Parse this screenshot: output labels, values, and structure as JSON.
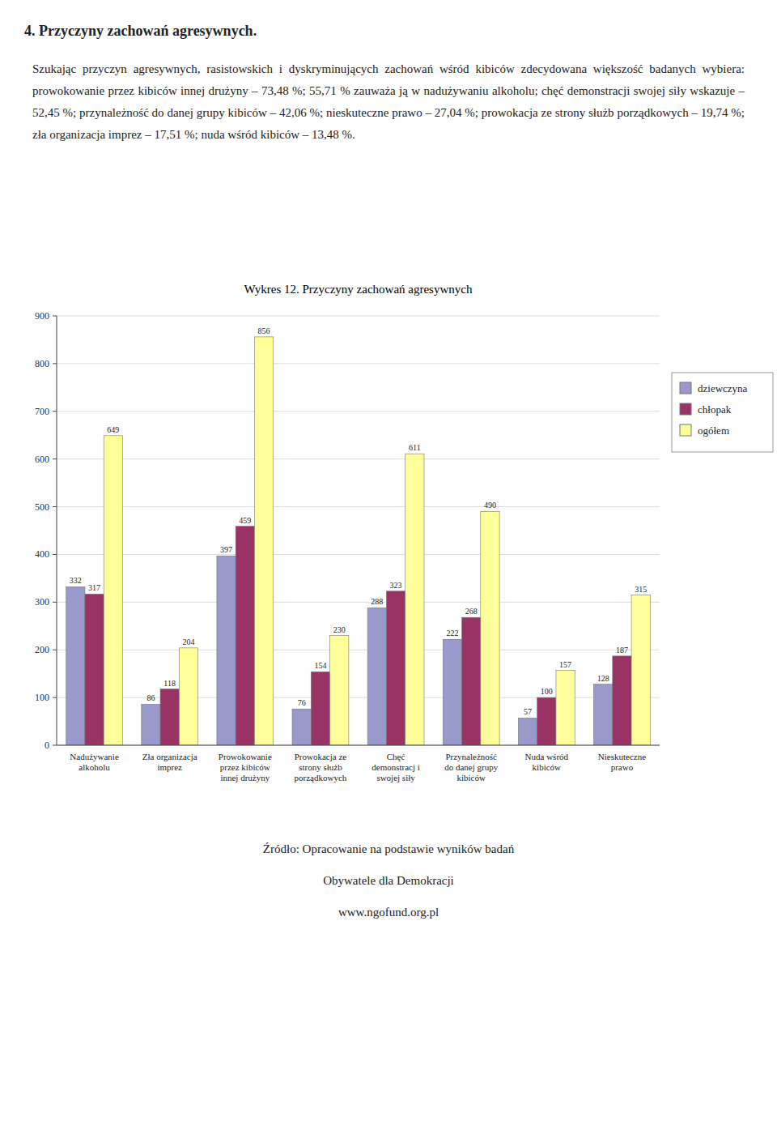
{
  "header": "4. Przyczyny zachowań agresywnych.",
  "paragraph": "Szukając przyczyn agresywnych, rasistowskich i dyskryminujących  zachowań wśród kibiców zdecydowana większość badanych wybiera: prowokowanie przez kibiców innej drużyny – 73,48 %; 55,71 % zauważa ją w nadużywaniu alkoholu; chęć demonstracji swojej siły wskazuje – 52,45 %; przynależność do danej grupy kibiców – 42,06 %; nieskuteczne prawo – 27,04 %; prowokacja ze strony służb porządkowych – 19,74 %; zła organizacja imprez – 17,51 %; nuda wśród kibiców – 13,48 %.",
  "footer": [
    "Źródło: Opracowanie na podstawie wyników badań",
    "Obywatele dla Demokracji",
    "www.ngofund.org.pl"
  ],
  "chart_data": {
    "type": "bar",
    "title": "Wykres 12. Przyczyny  zachowań agresywnych",
    "categories": [
      "Nadużywanie\nalkoholu",
      "Zła organizacja\nimprez",
      "Prowokowanie\nprzez kibiców\ninnej drużyny",
      "Prowokacja ze\nstrony służb\nporządkowych",
      "Chęć\ndemonstracj i\nswojej siły",
      "Przynależność\ndo danej grupy\nkibiców",
      "Nuda wśród\nkibiców",
      "Nieskuteczne\nprawo"
    ],
    "series": [
      {
        "name": "dziewczyna",
        "color": "#9999CC",
        "values": [
          332,
          86,
          397,
          76,
          288,
          222,
          57,
          128
        ]
      },
      {
        "name": "chłopak",
        "color": "#993366",
        "values": [
          317,
          118,
          459,
          154,
          323,
          268,
          100,
          187
        ]
      },
      {
        "name": "ogółem",
        "color": "#FFFF99",
        "values": [
          649,
          204,
          856,
          230,
          611,
          490,
          157,
          315
        ]
      }
    ],
    "ylim": [
      0,
      900
    ],
    "yticks": [
      0,
      100,
      200,
      300,
      400,
      500,
      600,
      700,
      800,
      900
    ],
    "grid": true,
    "legend": "right",
    "data_labels": true
  }
}
